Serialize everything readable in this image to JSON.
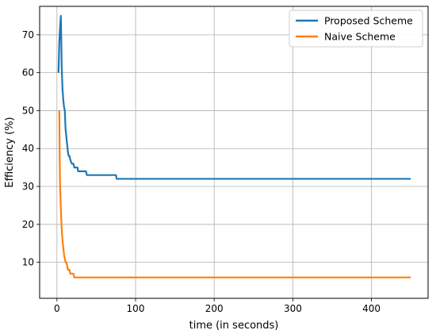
{
  "chart_data": {
    "type": "line",
    "xlabel": "time (in seconds)",
    "ylabel": "Efficiency (%)",
    "xlim": [
      -22,
      472
    ],
    "ylim": [
      0.5,
      77.5
    ],
    "xticks": [
      0,
      100,
      200,
      300,
      400
    ],
    "yticks": [
      10,
      20,
      30,
      40,
      50,
      60,
      70
    ],
    "grid": true,
    "legend_position": "top-right",
    "series": [
      {
        "name": "Proposed Scheme",
        "color": "#1f77b4",
        "points": [
          [
            2,
            60
          ],
          [
            3,
            68
          ],
          [
            4,
            72
          ],
          [
            5,
            75
          ],
          [
            5.5,
            69
          ],
          [
            6,
            62
          ],
          [
            7,
            56
          ],
          [
            8,
            53
          ],
          [
            9,
            51
          ],
          [
            10,
            50
          ],
          [
            11,
            45
          ],
          [
            12,
            43
          ],
          [
            13,
            41
          ],
          [
            14,
            39
          ],
          [
            15,
            38
          ],
          [
            16,
            38
          ],
          [
            17,
            37
          ],
          [
            19,
            36
          ],
          [
            21,
            36
          ],
          [
            22,
            35
          ],
          [
            26,
            35
          ],
          [
            27,
            34
          ],
          [
            37,
            34
          ],
          [
            38,
            33
          ],
          [
            75,
            33
          ],
          [
            76,
            32
          ],
          [
            450,
            32
          ]
        ]
      },
      {
        "name": "Naive Scheme",
        "color": "#ff7f0e",
        "points": [
          [
            3,
            50
          ],
          [
            3.5,
            38
          ],
          [
            4,
            30
          ],
          [
            5,
            24
          ],
          [
            6,
            19
          ],
          [
            7,
            16
          ],
          [
            8,
            14
          ],
          [
            9,
            12
          ],
          [
            10,
            11
          ],
          [
            11,
            10
          ],
          [
            12,
            10
          ],
          [
            13,
            9
          ],
          [
            14,
            8
          ],
          [
            16,
            8
          ],
          [
            17,
            7
          ],
          [
            21,
            7
          ],
          [
            22,
            6
          ],
          [
            450,
            6
          ]
        ]
      }
    ]
  }
}
